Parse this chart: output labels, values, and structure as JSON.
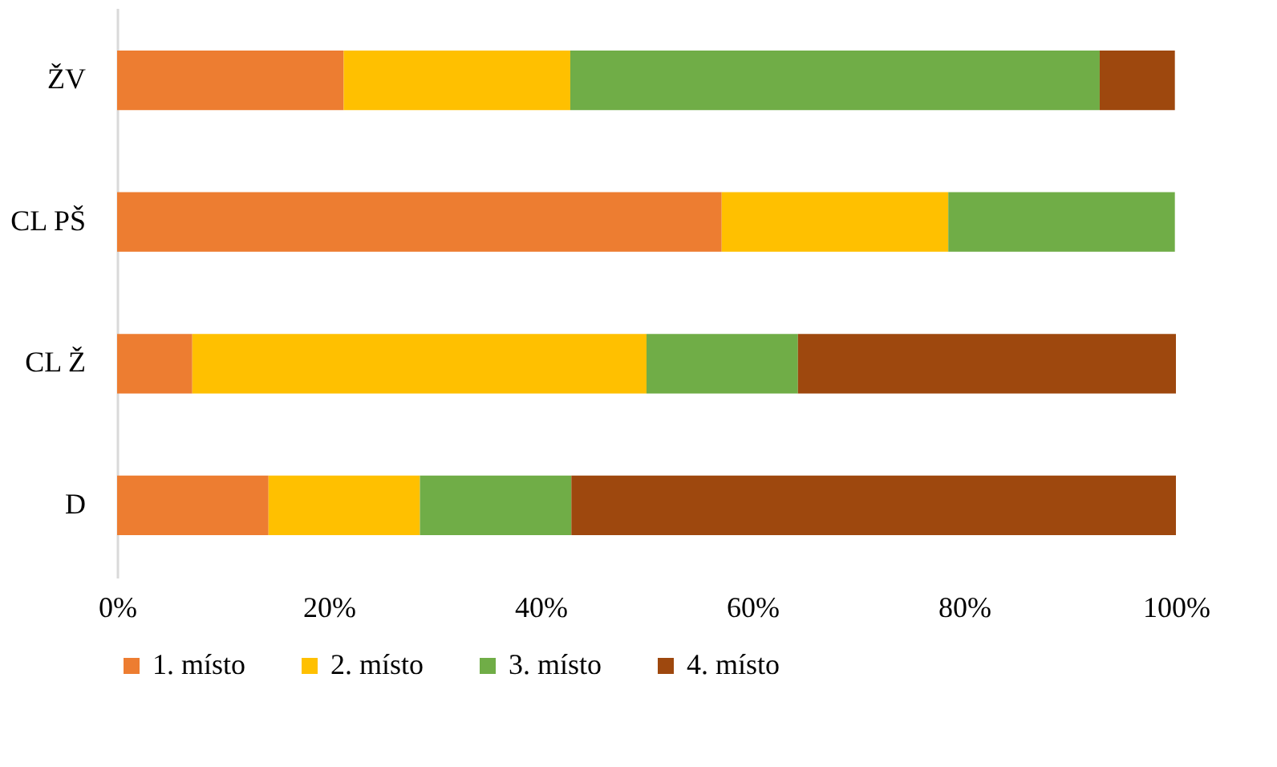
{
  "chart_data": {
    "type": "bar",
    "orientation": "horizontal",
    "stacked": true,
    "categories": [
      "ŽV",
      "CL PŠ",
      "CL Ž",
      "D"
    ],
    "series": [
      {
        "name": "1. místo",
        "color": "#ed7d31",
        "values": [
          21.4,
          57.1,
          7.1,
          14.3
        ]
      },
      {
        "name": "2. místo",
        "color": "#ffc000",
        "values": [
          21.4,
          21.4,
          42.9,
          14.3
        ]
      },
      {
        "name": "3. místo",
        "color": "#70ad47",
        "values": [
          50.0,
          21.4,
          14.3,
          14.3
        ]
      },
      {
        "name": "4. místo",
        "color": "#9e480e",
        "values": [
          7.1,
          0,
          35.7,
          57.1
        ]
      }
    ],
    "xlim": [
      0,
      100
    ],
    "xticks": [
      {
        "value": 0,
        "label": "0%"
      },
      {
        "value": 20,
        "label": "20%"
      },
      {
        "value": 40,
        "label": "40%"
      },
      {
        "value": 60,
        "label": "60%"
      },
      {
        "value": 80,
        "label": "80%"
      },
      {
        "value": 100,
        "label": "100%"
      }
    ],
    "grid": false,
    "legend": "bottom"
  }
}
